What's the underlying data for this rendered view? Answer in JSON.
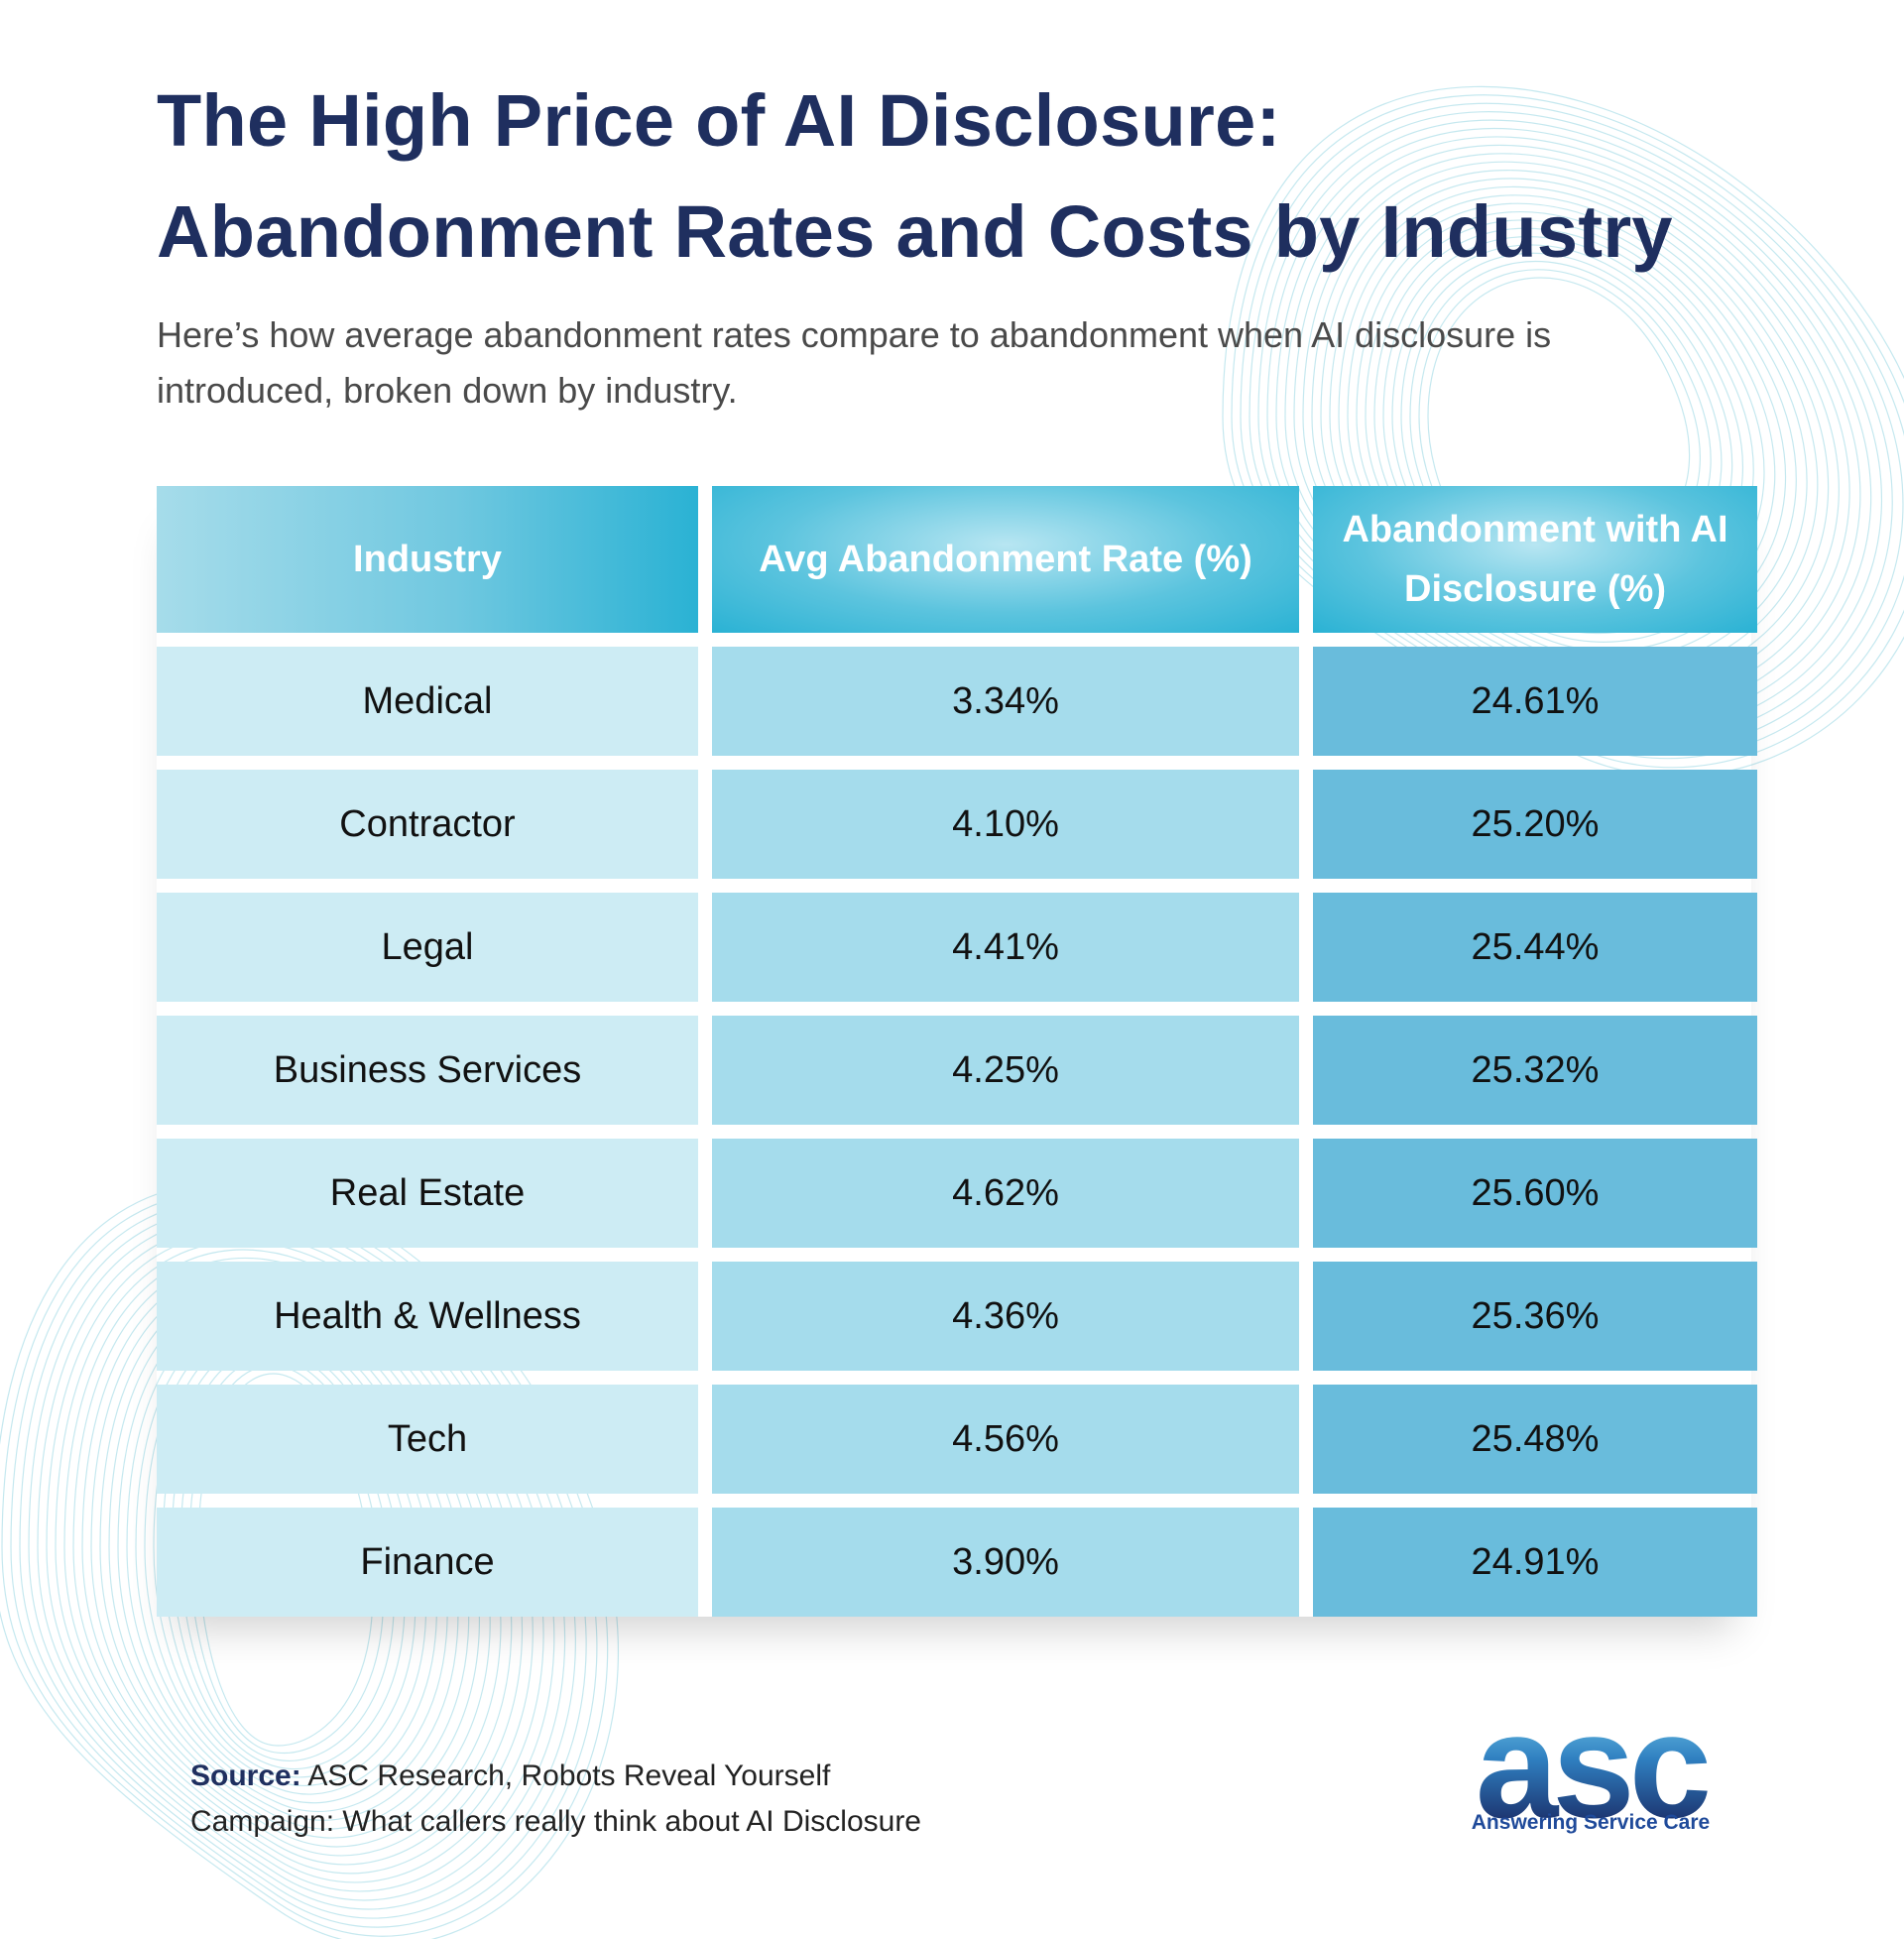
{
  "title_line1": "The High Price of AI Disclosure:",
  "title_line2": "Abandonment Rates and Costs by Industry",
  "subtitle": "Here’s how average abandonment rates compare to abandonment when AI disclosure is introduced, broken down by industry.",
  "colors": {
    "title": "#1f2f5f",
    "header_accent": "#2ab2d4",
    "col_industry": "#cdecf4",
    "col_avg": "#a5dcec",
    "col_ai": "#69bcdc"
  },
  "chart_data": {
    "type": "table",
    "columns": [
      "Industry",
      "Avg Abandonment Rate (%)",
      "Abandonment with AI Disclosure (%)"
    ],
    "rows": [
      [
        "Medical",
        "3.34%",
        "24.61%"
      ],
      [
        "Contractor",
        "4.10%",
        "25.20%"
      ],
      [
        "Legal",
        "4.41%",
        "25.44%"
      ],
      [
        "Business Services",
        "4.25%",
        "25.32%"
      ],
      [
        "Real Estate",
        "4.62%",
        "25.60%"
      ],
      [
        "Health & Wellness",
        "4.36%",
        "25.36%"
      ],
      [
        "Tech",
        "4.56%",
        "25.48%"
      ],
      [
        "Finance",
        "3.90%",
        "24.91%"
      ]
    ]
  },
  "source": {
    "label": "Source:",
    "text": "ASC Research, Robots Reveal Yourself",
    "campaign": "Campaign: What callers really think about AI Disclosure"
  },
  "logo": {
    "mark": "asc",
    "tagline": "Answering Service Care"
  }
}
